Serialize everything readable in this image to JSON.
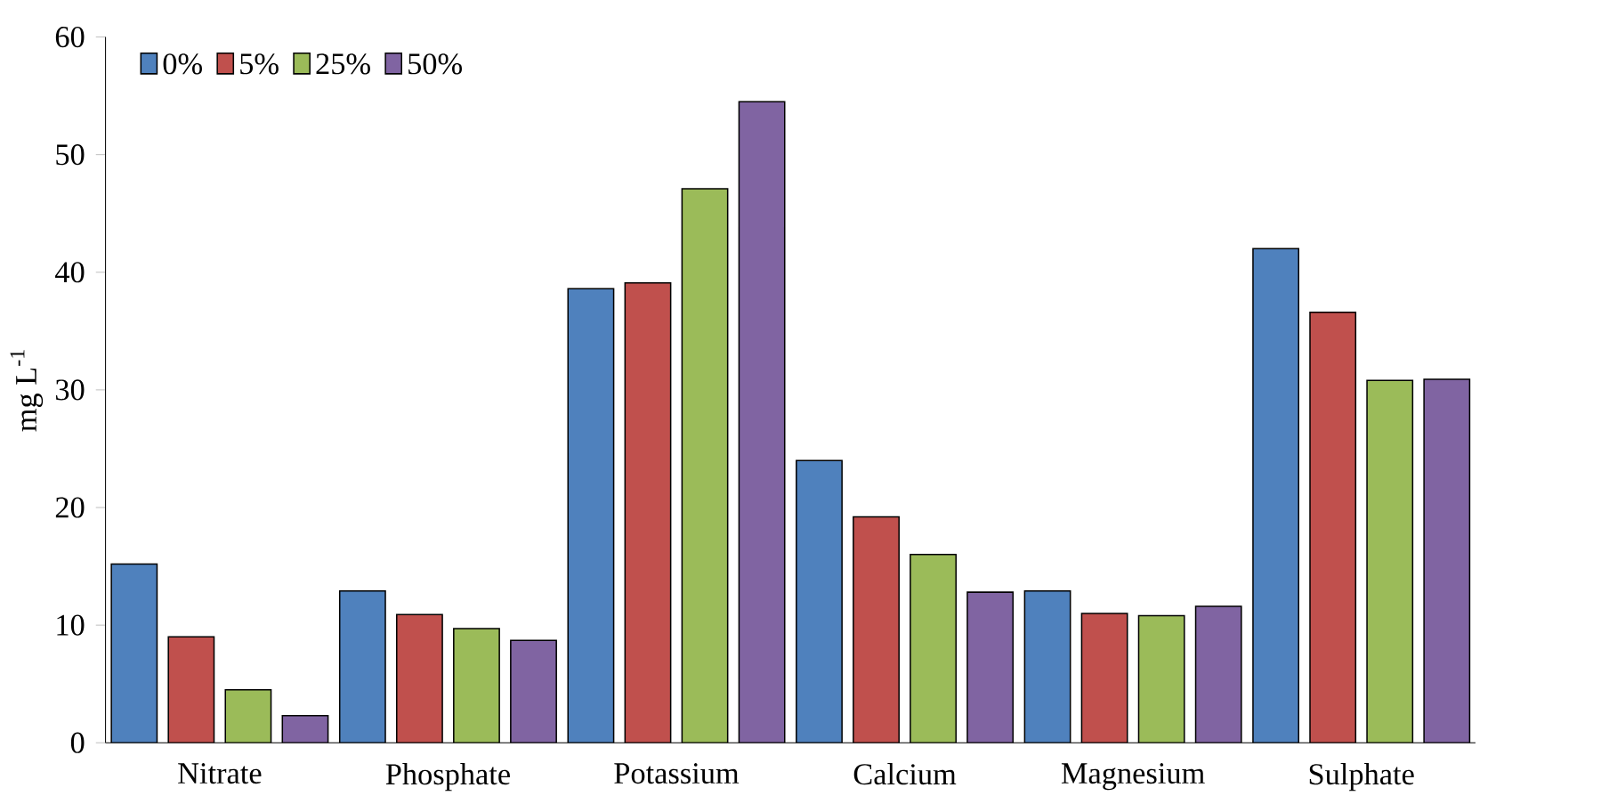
{
  "chart_data": {
    "type": "bar",
    "ylabel": "mg L$^{-1}$",
    "categories": [
      "Nitrate",
      "Phosphate",
      "Potassium",
      "Calcium",
      "Magnesium",
      "Sulphate"
    ],
    "series": [
      {
        "name": "0%",
        "color": "#4f81bd",
        "values": [
          15.2,
          12.9,
          38.6,
          24.0,
          12.9,
          42.0
        ]
      },
      {
        "name": "5%",
        "color": "#c0504d",
        "values": [
          9.0,
          10.9,
          39.1,
          19.2,
          11.0,
          36.6
        ]
      },
      {
        "name": "25%",
        "color": "#9bbb59",
        "values": [
          4.5,
          9.7,
          47.1,
          16.0,
          10.8,
          30.8
        ]
      },
      {
        "name": "50%",
        "color": "#8064a2",
        "values": [
          2.3,
          8.7,
          54.5,
          12.8,
          11.6,
          30.9
        ]
      }
    ],
    "ylim": [
      0,
      60
    ],
    "yticks": [
      0,
      10,
      20,
      30,
      40,
      50,
      60
    ],
    "grid": false,
    "legend": "top left"
  }
}
